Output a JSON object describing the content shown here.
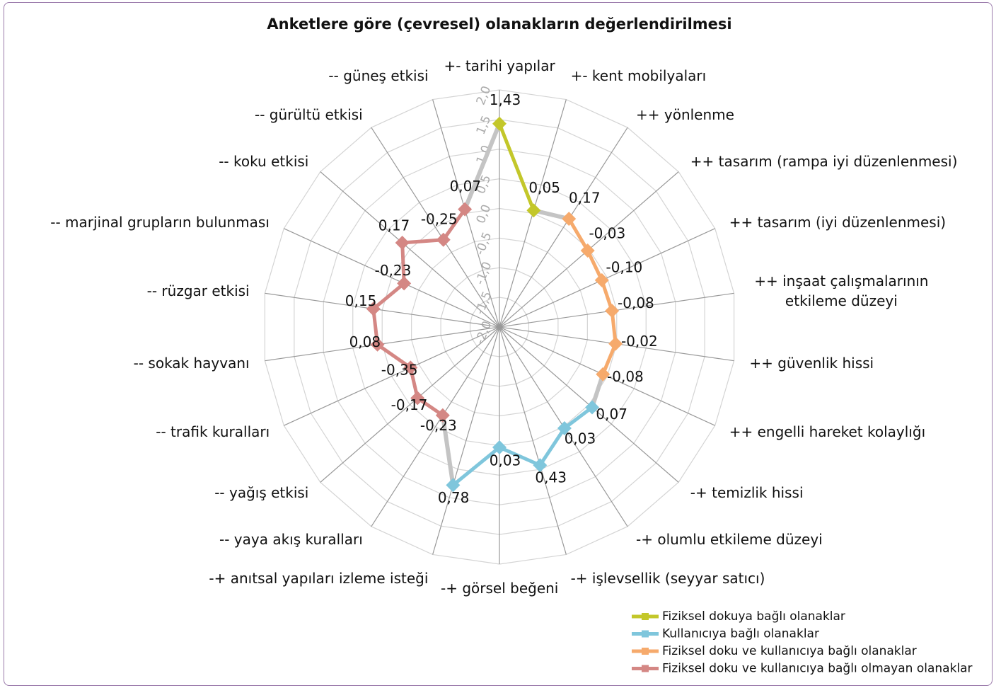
{
  "chart_data": {
    "type": "radar",
    "title": "Anketlere göre (çevresel) olanakların değerlendirilmesi",
    "categories": [
      "+- tarihi yapılar",
      "+- kent mobilyaları",
      "++ yönlenme",
      "++ tasarım (rampa iyi düzenlenmesi)",
      "++ tasarım (iyi düzenlenmesi)",
      "++ inşaat çalışmalarının etkileme düzeyi",
      "++ güvenlik hissi",
      "++ engelli hareket kolaylığı",
      "-+ temizlik hissi",
      "-+ olumlu etkileme düzeyi",
      "-+ işlevsellik (seyyar satıcı)",
      "-+ görsel beğeni",
      "-+ anıtsal yapıları izleme isteği",
      "-- yaya akış kuralları",
      "-- yağış etkisi",
      "-- trafik kuralları",
      "-- sokak hayvanı",
      "-- rüzgar etkisi",
      "-- marjinal grupların bulunması",
      "-- koku etkisi",
      "-- gürültü etkisi",
      "-- güneş etkisi"
    ],
    "series": [
      {
        "name": "Fiziksel dokuya bağlı olanaklar",
        "color": "#c3c72a",
        "values": [
          1.43,
          0.05,
          null,
          null,
          null,
          null,
          null,
          null,
          null,
          null,
          null,
          null,
          null,
          null,
          null,
          null,
          null,
          null,
          null,
          null,
          null,
          null
        ],
        "value_labels": [
          "1,43",
          "0,05",
          null,
          null,
          null,
          null,
          null,
          null,
          null,
          null,
          null,
          null,
          null,
          null,
          null,
          null,
          null,
          null,
          null,
          null,
          null,
          null
        ]
      },
      {
        "name": "Kullanıcıya bağlı olanaklar",
        "color": "#7fc6dc",
        "values": [
          null,
          null,
          null,
          null,
          null,
          null,
          null,
          null,
          0.07,
          0.03,
          0.43,
          0.03,
          0.78,
          null,
          null,
          null,
          null,
          null,
          null,
          null,
          null,
          null
        ],
        "value_labels": [
          null,
          null,
          null,
          null,
          null,
          null,
          null,
          null,
          "0,07",
          "0,03",
          "0,43",
          "0,03",
          "0,78",
          null,
          null,
          null,
          null,
          null,
          null,
          null,
          null,
          null
        ]
      },
      {
        "name": "Fiziksel doku ve kullanıcıya bağlı olanaklar",
        "color": "#f6aa6c",
        "values": [
          null,
          null,
          0.17,
          -0.03,
          -0.1,
          -0.08,
          -0.02,
          -0.08,
          null,
          null,
          null,
          null,
          null,
          null,
          null,
          null,
          null,
          null,
          null,
          null,
          null,
          null
        ],
        "value_labels": [
          null,
          null,
          "0,17",
          "-0,03",
          "-0,10",
          "-0,08",
          "-0,02",
          "-0,08",
          null,
          null,
          null,
          null,
          null,
          null,
          null,
          null,
          null,
          null,
          null,
          null,
          null,
          null
        ]
      },
      {
        "name": "Fiziksel doku ve kullanıcıya bağlı olmayan olanaklar",
        "color": "#d48784",
        "values": [
          null,
          null,
          null,
          null,
          null,
          null,
          null,
          null,
          null,
          null,
          null,
          null,
          null,
          -0.23,
          -0.17,
          -0.35,
          0.08,
          0.15,
          -0.23,
          0.17,
          -0.25,
          0.07
        ],
        "value_labels": [
          null,
          null,
          null,
          null,
          null,
          null,
          null,
          null,
          null,
          null,
          null,
          null,
          null,
          "-0,23",
          "-0,17",
          "-0,35",
          "0,08",
          "0,15",
          "-0,23",
          "0,17",
          "-0,25",
          "0,07"
        ]
      }
    ],
    "ylim": [
      -2,
      2
    ],
    "yticks": [
      {
        "value": -2,
        "label": "-2,0"
      },
      {
        "value": -1.5,
        "label": "-1,5"
      },
      {
        "value": -1,
        "label": "-1,0"
      },
      {
        "value": -0.5,
        "label": "-0,5"
      },
      {
        "value": 0,
        "label": "0,0"
      },
      {
        "value": 0.5,
        "label": "0,5"
      },
      {
        "value": 1,
        "label": "1,0"
      },
      {
        "value": 1.5,
        "label": "1,5"
      },
      {
        "value": 2,
        "label": "2,0"
      }
    ],
    "grid": true,
    "legend": "bottom-right"
  }
}
